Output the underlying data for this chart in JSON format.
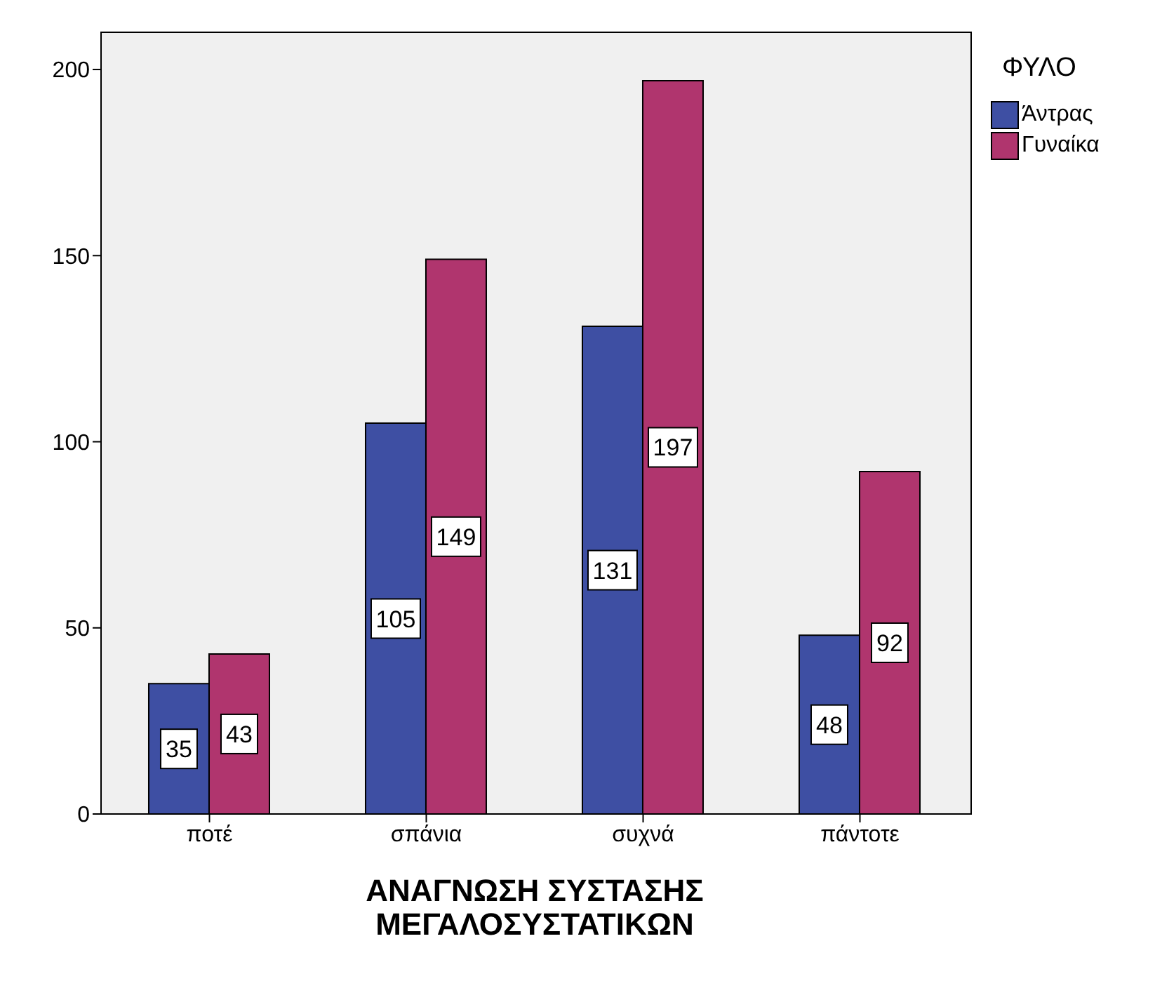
{
  "chart_data": {
    "type": "bar",
    "xlabel": "ΑΝΑΓΝΩΣΗ ΣΥΣΤΑΣΗΣ ΜΕΓΑΛΟΣΥΣΤΑΤΙΚΩΝ",
    "legend_title": "ΦΥΛΟ",
    "categories": [
      "ποτέ",
      "σπάνια",
      "συχνά",
      "πάντοτε"
    ],
    "series": [
      {
        "name": "Άντρας",
        "color": "#3e4fa3",
        "values": [
          35,
          105,
          131,
          48
        ]
      },
      {
        "name": "Γυναίκα",
        "color": "#b0356e",
        "values": [
          43,
          149,
          197,
          92
        ]
      }
    ],
    "ylim": [
      0,
      210
    ],
    "yticks": [
      0,
      50,
      100,
      150,
      200
    ],
    "legend": "right",
    "data_labels": true
  }
}
